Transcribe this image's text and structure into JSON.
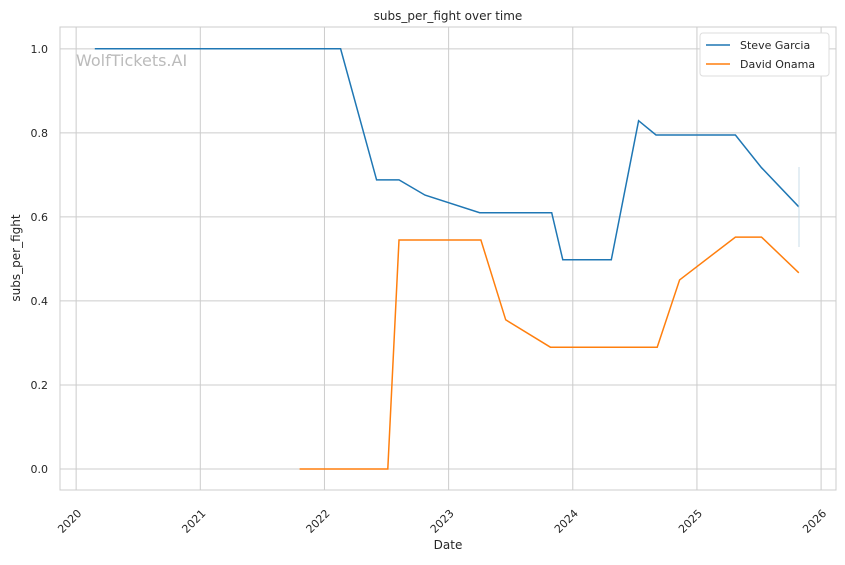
{
  "chart_data": {
    "type": "line",
    "title": "subs_per_fight over time",
    "xlabel": "Date",
    "ylabel": "subs_per_fight",
    "watermark": "WolfTickets.AI",
    "xlim": [
      2019.87,
      2026.12
    ],
    "ylim": [
      -0.05,
      1.052
    ],
    "x_ticks": [
      2020,
      2021,
      2022,
      2023,
      2024,
      2025,
      2026
    ],
    "x_tick_labels": [
      "2020",
      "2021",
      "2022",
      "2023",
      "2024",
      "2025",
      "2026"
    ],
    "y_ticks": [
      0.0,
      0.2,
      0.4,
      0.6,
      0.8,
      1.0
    ],
    "y_tick_labels": [
      "0.0",
      "0.2",
      "0.4",
      "0.6",
      "0.8",
      "1.0"
    ],
    "grid": true,
    "legend_position": "top-right",
    "series": [
      {
        "name": "Steve Garcia",
        "color": "#1f77b4",
        "x": [
          2020.15,
          2022.13,
          2022.42,
          2022.6,
          2022.81,
          2023.25,
          2023.83,
          2023.92,
          2024.31,
          2024.53,
          2024.67,
          2025.31,
          2025.52,
          2025.82
        ],
        "y": [
          1.0,
          1.0,
          0.688,
          0.688,
          0.652,
          0.61,
          0.61,
          0.498,
          0.498,
          0.829,
          0.795,
          0.795,
          0.717,
          0.624
        ]
      },
      {
        "name": "David Onama",
        "color": "#ff7f0e",
        "x": [
          2021.8,
          2022.51,
          2022.6,
          2023.26,
          2023.46,
          2023.82,
          2024.68,
          2024.86,
          2025.31,
          2025.52,
          2025.82
        ],
        "y": [
          0.0,
          0.0,
          0.545,
          0.545,
          0.355,
          0.29,
          0.29,
          0.45,
          0.552,
          0.552,
          0.467
        ]
      }
    ]
  }
}
